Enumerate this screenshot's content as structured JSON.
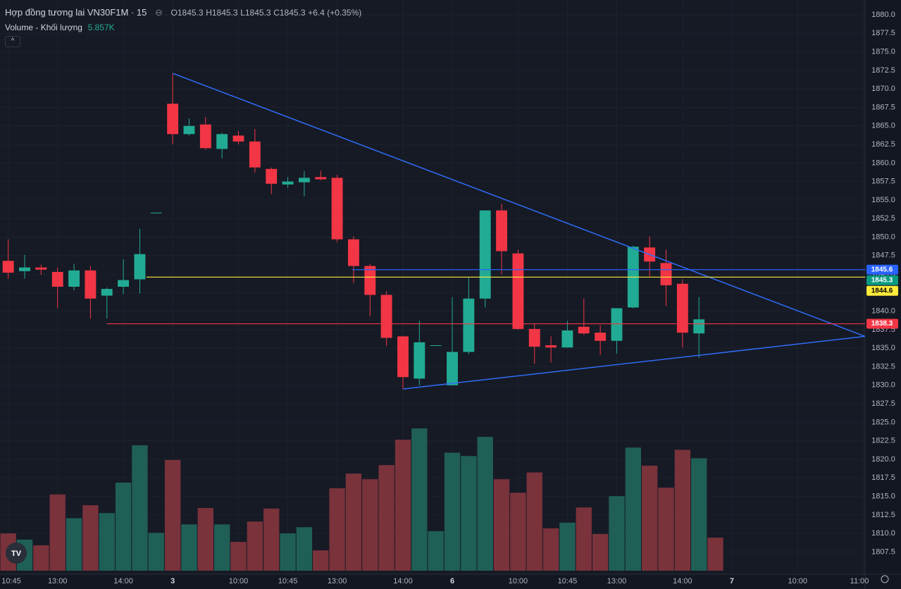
{
  "header": {
    "title": "Hợp đồng tương lai VN30F1M · 15",
    "ohlc": [
      {
        "label": "O",
        "value": 1845.3
      },
      {
        "label": "H",
        "value": 1845.3
      },
      {
        "label": "L",
        "value": 1845.3
      },
      {
        "label": "C",
        "value": 1845.3
      }
    ],
    "change": "+6.4 (+0.35%)",
    "volume_title": "Volume - Khối lượng",
    "volume_value": {
      "value": 5857,
      "label": "5.857K"
    }
  },
  "chart_data": {
    "type": "candlestick",
    "up_color": "#22ab94",
    "down_color": "#f23645",
    "up_volume_color": "#1f5f56",
    "down_volume_color": "#7a323b",
    "open": [
      1846.8,
      1845.4,
      1845.9,
      1845.3,
      1843.3,
      1845.5,
      1842.1,
      1843.3,
      1844.3,
      1853.3,
      1868.0,
      1863.9,
      1865.2,
      1861.9,
      1863.7,
      1862.9,
      1859.2,
      1857.1,
      1857.4,
      1858.1,
      1858.0,
      1849.7,
      1846.1,
      1842.2,
      1836.6,
      1830.9,
      1835.4,
      1830.0,
      1834.5,
      1841.7,
      1853.6,
      1847.8,
      1837.6,
      1835.4,
      1835.1,
      1837.9,
      1837.1,
      1836.0,
      1840.5,
      1848.6,
      1846.5,
      1843.7,
      1837.0,
      null
    ],
    "high": [
      1849.7,
      1847.6,
      1846.3,
      1845.9,
      1846.4,
      1846.1,
      1843.2,
      1847.0,
      1851.1,
      1853.3,
      1872.1,
      1866.0,
      1866.2,
      1864.1,
      1864.3,
      1864.6,
      1859.4,
      1858.1,
      1858.9,
      1859.0,
      1858.4,
      1850.1,
      1846.4,
      1842.7,
      1836.7,
      1838.7,
      1835.4,
      1841.9,
      1844.6,
      1853.6,
      1854.5,
      1848.3,
      1838.3,
      1836.6,
      1838.7,
      1841.7,
      1838.1,
      1840.4,
      1848.8,
      1850.1,
      1848.3,
      1844.3,
      1841.9,
      null
    ],
    "low": [
      1844.4,
      1844.4,
      1844.9,
      1840.4,
      1842.8,
      1839.0,
      1839.0,
      1842.3,
      1842.4,
      1853.3,
      1862.5,
      1863.7,
      1861.8,
      1860.6,
      1862.5,
      1858.7,
      1855.8,
      1856.6,
      1855.5,
      1857.7,
      1849.3,
      1843.8,
      1839.3,
      1835.3,
      1829.5,
      1830.0,
      1835.4,
      1830.0,
      1834.2,
      1840.5,
      1845.0,
      1837.5,
      1832.9,
      1833.1,
      1835.1,
      1836.8,
      1834.1,
      1834.3,
      1840.4,
      1844.7,
      1840.7,
      1835.1,
      1833.7,
      null
    ],
    "close": [
      1845.2,
      1845.9,
      1845.6,
      1843.3,
      1845.5,
      1841.7,
      1843.0,
      1844.2,
      1847.7,
      1853.3,
      1863.9,
      1865.0,
      1862.0,
      1863.9,
      1862.9,
      1859.4,
      1857.2,
      1857.5,
      1858.0,
      1857.8,
      1849.7,
      1846.1,
      1842.2,
      1836.4,
      1831.1,
      1835.8,
      1835.4,
      1834.5,
      1841.7,
      1853.6,
      1848.1,
      1837.6,
      1835.2,
      1835.1,
      1837.4,
      1837.0,
      1836.0,
      1840.4,
      1848.7,
      1846.7,
      1843.5,
      1837.1,
      1838.9,
      null
    ],
    "volume": [
      6600,
      5500,
      4500,
      13500,
      9300,
      11600,
      10200,
      15600,
      22200,
      6700,
      19600,
      8200,
      11100,
      8200,
      5100,
      8700,
      11000,
      6600,
      7700,
      3600,
      14600,
      17200,
      16200,
      18700,
      23200,
      25200,
      7000,
      20900,
      20300,
      23700,
      16200,
      13800,
      17400,
      7500,
      8500,
      11200,
      6500,
      13200,
      21800,
      18600,
      14700,
      21400,
      19900,
      5857
    ],
    "xlim": [
      -0.5,
      52.1
    ],
    "xticks": [
      {
        "value": 0,
        "label": "10:45"
      },
      {
        "value": 3,
        "label": "13:00"
      },
      {
        "value": 7,
        "label": "14:00"
      },
      {
        "value": 10,
        "label": "3"
      },
      {
        "value": 14,
        "label": "10:00"
      },
      {
        "value": 17,
        "label": "10:45"
      },
      {
        "value": 20,
        "label": "13:00"
      },
      {
        "value": 24,
        "label": "14:00"
      },
      {
        "value": 27,
        "label": "6"
      },
      {
        "value": 31,
        "label": "10:00"
      },
      {
        "value": 34,
        "label": "10:45"
      },
      {
        "value": 37,
        "label": "13:00"
      },
      {
        "value": 41,
        "label": "14:00"
      },
      {
        "value": 44,
        "label": "7"
      },
      {
        "value": 48,
        "label": "10:00"
      },
      {
        "value": 52,
        "label": "11:00"
      }
    ],
    "ylim": [
      1804.5,
      1882.0
    ],
    "yticks": [
      {
        "value": 1807.5,
        "label": "1807.5"
      },
      {
        "value": 1810,
        "label": "1810.0"
      },
      {
        "value": 1812.5,
        "label": "1812.5"
      },
      {
        "value": 1815,
        "label": "1815.0"
      },
      {
        "value": 1817.5,
        "label": "1817.5"
      },
      {
        "value": 1820,
        "label": "1820.0"
      },
      {
        "value": 1822.5,
        "label": "1822.5"
      },
      {
        "value": 1825,
        "label": "1825.0"
      },
      {
        "value": 1827.5,
        "label": "1827.5"
      },
      {
        "value": 1830,
        "label": "1830.0"
      },
      {
        "value": 1832.5,
        "label": "1832.5"
      },
      {
        "value": 1835,
        "label": "1835.0"
      },
      {
        "value": 1837.5,
        "label": "1837.5"
      },
      {
        "value": 1840,
        "label": "1840.0"
      },
      {
        "value": 1842.5,
        "label": "1842.5"
      },
      {
        "value": 1845,
        "label": "1845.0"
      },
      {
        "value": 1847.5,
        "label": "1847.5"
      },
      {
        "value": 1850,
        "label": "1850.0"
      },
      {
        "value": 1852.5,
        "label": "1852.5"
      },
      {
        "value": 1855,
        "label": "1855.0"
      },
      {
        "value": 1857.5,
        "label": "1857.5"
      },
      {
        "value": 1860,
        "label": "1860.0"
      },
      {
        "value": 1862.5,
        "label": "1862.5"
      },
      {
        "value": 1865,
        "label": "1865.0"
      },
      {
        "value": 1867.5,
        "label": "1867.5"
      },
      {
        "value": 1870,
        "label": "1870.0"
      },
      {
        "value": 1872.5,
        "label": "1872.5"
      },
      {
        "value": 1875,
        "label": "1875.0"
      },
      {
        "value": 1877.5,
        "label": "1877.5"
      },
      {
        "value": 1880,
        "label": "1880.0"
      }
    ],
    "grid": true,
    "levels": [
      {
        "value": 1845.6,
        "color": "#2962ff",
        "text_color": "#ffffff",
        "start": 20.9
      },
      {
        "value": 1845.3,
        "color": "#089981",
        "text_color": "#ffffff"
      },
      {
        "value": 1844.6,
        "color": "#ffeb3b",
        "text_color": "#000000",
        "start": 8.4
      },
      {
        "value": 1838.3,
        "color": "#f23645",
        "text_color": "#ffffff",
        "start": 6.0
      }
    ],
    "trendlines": [
      {
        "color": "#2f6cf5",
        "points": [
          [
            10,
            1872.1
          ],
          [
            52.1,
            1836.6
          ]
        ]
      },
      {
        "color": "#2f6cf5",
        "points": [
          [
            24,
            1829.5
          ],
          [
            52.1,
            1836.6
          ]
        ]
      }
    ]
  }
}
